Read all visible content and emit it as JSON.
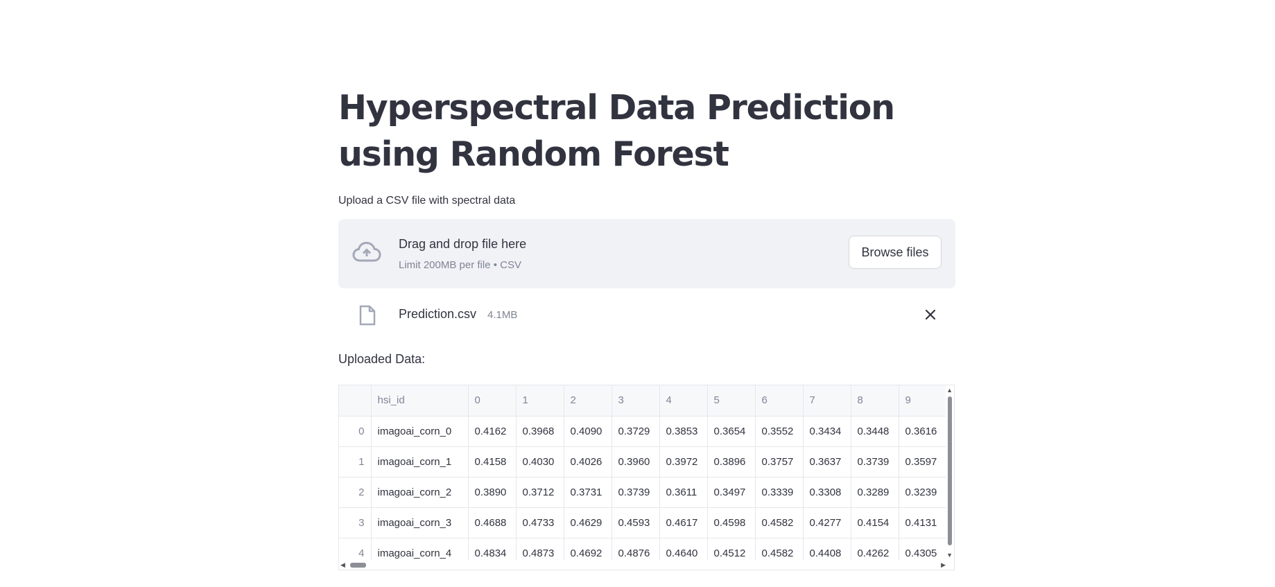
{
  "page": {
    "title": "Hyperspectral Data Prediction using Random Forest",
    "upload_label": "Upload a CSV file with spectral data"
  },
  "uploader": {
    "icon": "cloud-upload-icon",
    "drag_text": "Drag and drop file here",
    "limit_text": "Limit 200MB per file • CSV",
    "browse_label": "Browse files"
  },
  "file": {
    "icon": "file-icon",
    "name": "Prediction.csv",
    "size": "4.1MB",
    "remove_icon": "close-icon"
  },
  "data_section": {
    "label": "Uploaded Data:"
  },
  "table": {
    "columns": [
      "",
      "hsi_id",
      "0",
      "1",
      "2",
      "3",
      "4",
      "5",
      "6",
      "7",
      "8",
      "9"
    ],
    "rows": [
      [
        "0",
        "imagoai_corn_0",
        "0.4162",
        "0.3968",
        "0.4090",
        "0.3729",
        "0.3853",
        "0.3654",
        "0.3552",
        "0.3434",
        "0.3448",
        "0.3616"
      ],
      [
        "1",
        "imagoai_corn_1",
        "0.4158",
        "0.4030",
        "0.4026",
        "0.3960",
        "0.3972",
        "0.3896",
        "0.3757",
        "0.3637",
        "0.3739",
        "0.3597"
      ],
      [
        "2",
        "imagoai_corn_2",
        "0.3890",
        "0.3712",
        "0.3731",
        "0.3739",
        "0.3611",
        "0.3497",
        "0.3339",
        "0.3308",
        "0.3289",
        "0.3239"
      ],
      [
        "3",
        "imagoai_corn_3",
        "0.4688",
        "0.4733",
        "0.4629",
        "0.4593",
        "0.4617",
        "0.4598",
        "0.4582",
        "0.4277",
        "0.4154",
        "0.4131"
      ],
      [
        "4",
        "imagoai_corn_4",
        "0.4834",
        "0.4873",
        "0.4692",
        "0.4876",
        "0.4640",
        "0.4512",
        "0.4582",
        "0.4408",
        "0.4262",
        "0.4305"
      ]
    ]
  },
  "colors": {
    "text": "#31333f",
    "muted": "#808495",
    "dropzone_bg": "#f0f2f6",
    "border": "#e6e7ea"
  }
}
